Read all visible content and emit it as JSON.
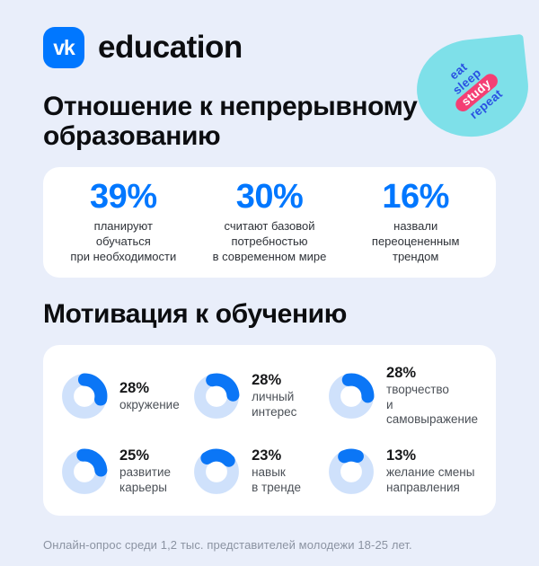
{
  "colors": {
    "background": "#e9eefa",
    "card": "#ffffff",
    "accent_blue": "#0077ff",
    "donut_track": "#cfe1fb",
    "badge_teal": "#7ee0e9",
    "badge_pink": "#f43f74",
    "badge_text_blue": "#2a52e2",
    "heading_text": "#0c0d10",
    "muted_text": "#8b93a2"
  },
  "header": {
    "logo_glyph": "vk",
    "brand_name": "education",
    "badge": {
      "line1": "eat",
      "line2": "sleep",
      "line3": "study",
      "line4": "repeat"
    }
  },
  "attitude": {
    "title": "Отношение к непрерывному образованию",
    "stats": [
      {
        "percent": "39%",
        "label": "планируют\nобучаться\nпри необходимости"
      },
      {
        "percent": "30%",
        "label": "считают базовой\nпотребностью\nв современном мире"
      },
      {
        "percent": "16%",
        "label": "назвали\nпереоцененным\nтрендом"
      }
    ]
  },
  "motivation": {
    "title": "Мотивация к обучению",
    "items": [
      {
        "percent": "28%",
        "label": "окружение",
        "value": 28,
        "start_angle": 0
      },
      {
        "percent": "28%",
        "label": "личный интерес",
        "value": 28,
        "start_angle": -15
      },
      {
        "percent": "28%",
        "label": "творчество\nи самовыражение",
        "value": 28,
        "start_angle": -10
      },
      {
        "percent": "25%",
        "label": "развитие\nкарьеры",
        "value": 25,
        "start_angle": -5
      },
      {
        "percent": "23%",
        "label": "навык\nв тренде",
        "value": 23,
        "start_angle": -35
      },
      {
        "percent": "13%",
        "label": "желание смены\nнаправления",
        "value": 13,
        "start_angle": -25
      }
    ]
  },
  "footer": {
    "note": "Онлайн-опрос среди 1,2 тыс. представителей молодежи 18-25 лет."
  },
  "chart_data": [
    {
      "type": "pie",
      "style": "stat-blocks",
      "title": "Отношение к непрерывному образованию",
      "labels": [
        "планируют обучаться при необходимости",
        "считают базовой потребностью в современном мире",
        "назвали переоцененным трендом"
      ],
      "values": [
        39,
        30,
        16
      ],
      "unit": "%"
    },
    {
      "type": "pie",
      "style": "donut",
      "title": "Мотивация к обучению",
      "labels": [
        "окружение",
        "личный интерес",
        "творчество и самовыражение",
        "развитие карьеры",
        "навык в тренде",
        "желание смены направления"
      ],
      "values": [
        28,
        28,
        28,
        25,
        23,
        13
      ],
      "unit": "%",
      "colors": {
        "arc": "#0b76f6",
        "track": "#cfe1fb"
      }
    }
  ]
}
